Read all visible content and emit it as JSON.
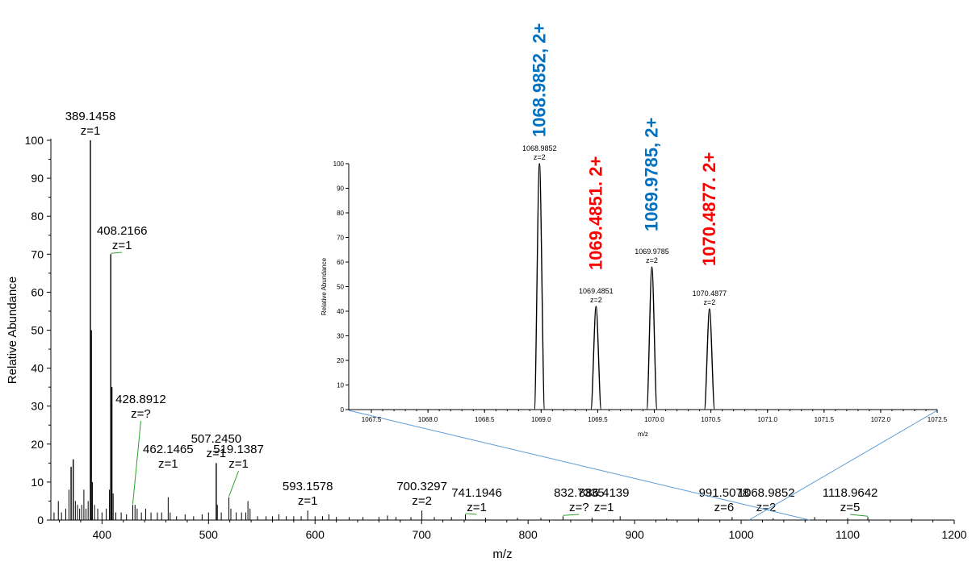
{
  "chart_data": [
    {
      "name": "main",
      "type": "line",
      "subtype": "mass-spectrum-sticks",
      "xlabel": "m/z",
      "ylabel": "Relative Abundance",
      "xlim": [
        352,
        1200
      ],
      "ylim": [
        0,
        100
      ],
      "xticks": [
        400,
        500,
        600,
        700,
        800,
        900,
        1000,
        1100,
        1200
      ],
      "yticks": [
        0,
        10,
        20,
        30,
        40,
        50,
        60,
        70,
        80,
        90,
        100
      ],
      "peaks": [
        {
          "x": 355,
          "y": 2
        },
        {
          "x": 359,
          "y": 5
        },
        {
          "x": 362,
          "y": 2
        },
        {
          "x": 366,
          "y": 3
        },
        {
          "x": 369,
          "y": 8
        },
        {
          "x": 371,
          "y": 14
        },
        {
          "x": 373,
          "y": 16
        },
        {
          "x": 375,
          "y": 5
        },
        {
          "x": 377,
          "y": 4
        },
        {
          "x": 379,
          "y": 3
        },
        {
          "x": 381,
          "y": 4
        },
        {
          "x": 383,
          "y": 8
        },
        {
          "x": 385,
          "y": 3
        },
        {
          "x": 387,
          "y": 5
        },
        {
          "x": 389.1458,
          "y": 100
        },
        {
          "x": 390,
          "y": 50
        },
        {
          "x": 391,
          "y": 10
        },
        {
          "x": 393,
          "y": 4
        },
        {
          "x": 396,
          "y": 3
        },
        {
          "x": 400,
          "y": 2
        },
        {
          "x": 404,
          "y": 3
        },
        {
          "x": 407,
          "y": 8
        },
        {
          "x": 408.2166,
          "y": 70
        },
        {
          "x": 409.3,
          "y": 35
        },
        {
          "x": 410.5,
          "y": 7
        },
        {
          "x": 413,
          "y": 2
        },
        {
          "x": 418,
          "y": 2
        },
        {
          "x": 423,
          "y": 1.5
        },
        {
          "x": 428.8912,
          "y": 4
        },
        {
          "x": 431,
          "y": 4
        },
        {
          "x": 433,
          "y": 3
        },
        {
          "x": 437,
          "y": 2
        },
        {
          "x": 441,
          "y": 3
        },
        {
          "x": 446,
          "y": 2
        },
        {
          "x": 452,
          "y": 2
        },
        {
          "x": 456,
          "y": 2
        },
        {
          "x": 462.1465,
          "y": 6
        },
        {
          "x": 464,
          "y": 2
        },
        {
          "x": 470,
          "y": 1
        },
        {
          "x": 478,
          "y": 1.5
        },
        {
          "x": 486,
          "y": 1
        },
        {
          "x": 494,
          "y": 1.5
        },
        {
          "x": 500,
          "y": 2
        },
        {
          "x": 507.245,
          "y": 15
        },
        {
          "x": 508.3,
          "y": 4
        },
        {
          "x": 512,
          "y": 2
        },
        {
          "x": 519.1387,
          "y": 6
        },
        {
          "x": 521,
          "y": 3
        },
        {
          "x": 526,
          "y": 2
        },
        {
          "x": 531,
          "y": 2
        },
        {
          "x": 535,
          "y": 2
        },
        {
          "x": 537,
          "y": 5
        },
        {
          "x": 539,
          "y": 3
        },
        {
          "x": 546,
          "y": 1
        },
        {
          "x": 554,
          "y": 1
        },
        {
          "x": 560,
          "y": 1
        },
        {
          "x": 566,
          "y": 1.5
        },
        {
          "x": 573,
          "y": 1
        },
        {
          "x": 580,
          "y": 1
        },
        {
          "x": 587,
          "y": 1
        },
        {
          "x": 593.1578,
          "y": 2.5
        },
        {
          "x": 600,
          "y": 1
        },
        {
          "x": 607,
          "y": 1
        },
        {
          "x": 613,
          "y": 1.5
        },
        {
          "x": 620,
          "y": 0.8
        },
        {
          "x": 632,
          "y": 0.8
        },
        {
          "x": 645,
          "y": 0.8
        },
        {
          "x": 660,
          "y": 0.8
        },
        {
          "x": 668,
          "y": 1.2
        },
        {
          "x": 676,
          "y": 0.8
        },
        {
          "x": 690,
          "y": 0.8
        },
        {
          "x": 700.3297,
          "y": 2.5
        },
        {
          "x": 712,
          "y": 0.8
        },
        {
          "x": 728,
          "y": 0.8
        },
        {
          "x": 741.1946,
          "y": 1.5
        },
        {
          "x": 760,
          "y": 0.6
        },
        {
          "x": 790,
          "y": 0.6
        },
        {
          "x": 812,
          "y": 0.6
        },
        {
          "x": 832.7335,
          "y": 1
        },
        {
          "x": 860,
          "y": 0.6
        },
        {
          "x": 886.4139,
          "y": 1
        },
        {
          "x": 930,
          "y": 0.5
        },
        {
          "x": 960,
          "y": 0.5
        },
        {
          "x": 991.5078,
          "y": 0.8
        },
        {
          "x": 1030,
          "y": 0.5
        },
        {
          "x": 1068.9852,
          "y": 0.8
        },
        {
          "x": 1100,
          "y": 0.5
        },
        {
          "x": 1118.9642,
          "y": 0.8
        },
        {
          "x": 1160,
          "y": 0.4
        }
      ],
      "annotations": [
        {
          "mz": "389.1458",
          "charge": "z=1",
          "x": 389.1458,
          "y": 100
        },
        {
          "mz": "408.2166",
          "charge": "z=1",
          "x": 408.2166,
          "y": 70
        },
        {
          "mz": "428.8912",
          "charge": "z=?",
          "x": 428.8912,
          "y": 4
        },
        {
          "mz": "462.1465",
          "charge": "z=1",
          "x": 462.1465,
          "y": 6
        },
        {
          "mz": "507.2450",
          "charge": "z=1",
          "x": 507.245,
          "y": 15
        },
        {
          "mz": "519.1387",
          "charge": "z=1",
          "x": 519.1387,
          "y": 6
        },
        {
          "mz": "593.1578",
          "charge": "z=1",
          "x": 593.1578,
          "y": 2.5
        },
        {
          "mz": "700.3297",
          "charge": "z=2",
          "x": 700.3297,
          "y": 2.5
        },
        {
          "mz": "741.1946",
          "charge": "z=1",
          "x": 741.1946,
          "y": 1.5
        },
        {
          "mz": "832.7335",
          "charge": "z=?",
          "x": 832.7335,
          "y": 1
        },
        {
          "mz": "886.4139",
          "charge": "z=1",
          "x": 886.4139,
          "y": 1
        },
        {
          "mz": "991.5078",
          "charge": "z=6",
          "x": 991.5078,
          "y": 0.8
        },
        {
          "mz": "1068.9852",
          "charge": "z=2",
          "x": 1068.9852,
          "y": 0.8
        },
        {
          "mz": "1118.9642",
          "charge": "z=5",
          "x": 1118.9642,
          "y": 0.8
        }
      ],
      "zoom_range": [
        1067.3,
        1072.5
      ]
    },
    {
      "name": "inset",
      "type": "line",
      "subtype": "mass-spectrum-profile",
      "xlabel": "m/z",
      "ylabel": "Relative Abundance",
      "xlim": [
        1067.3,
        1072.5
      ],
      "ylim": [
        0,
        100
      ],
      "xticks": [
        "1067.5",
        "1068.0",
        "1068.5",
        "1069.0",
        "1069.5",
        "1070.0",
        "1070.5",
        "1071.0",
        "1071.5",
        "1072.0",
        "1072.5"
      ],
      "yticks": [
        0,
        10,
        20,
        30,
        40,
        50,
        60,
        70,
        80,
        90,
        100
      ],
      "peaks": [
        {
          "mz": "1068.9852",
          "charge": "z=2",
          "x": 1068.9852,
          "y": 100
        },
        {
          "mz": "1069.4851",
          "charge": "z=2",
          "x": 1069.4851,
          "y": 42
        },
        {
          "mz": "1069.9785",
          "charge": "z=2",
          "x": 1069.9785,
          "y": 58
        },
        {
          "mz": "1070.4877",
          "charge": "z=2",
          "x": 1070.4877,
          "y": 41
        }
      ],
      "callouts": [
        {
          "text": "1068.9852, 2+",
          "color": "#0070C0",
          "x": 1068.9852
        },
        {
          "text": "1069.4851. 2+",
          "color": "#FF0000",
          "x": 1069.4851
        },
        {
          "text": "1069.9785, 2+",
          "color": "#0070C0",
          "x": 1069.9785
        },
        {
          "text": "1070.4877. 2+",
          "color": "#FF0000",
          "x": 1070.4877
        }
      ]
    }
  ],
  "colors": {
    "spectrum": "#000000",
    "leader": "#2ca02c",
    "zoom_lines": "#5b9bd5",
    "callout_blue": "#0070C0",
    "callout_red": "#FF0000"
  }
}
